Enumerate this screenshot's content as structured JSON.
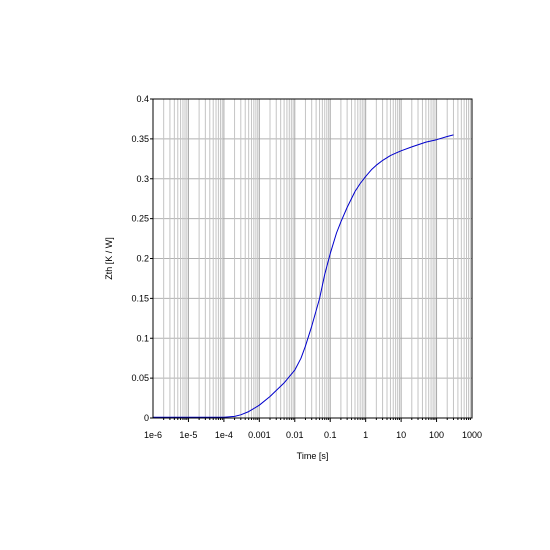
{
  "chart_data": {
    "type": "line",
    "title": "",
    "xlabel": "Time [s]",
    "ylabel": "Zth [K / W]",
    "xscale": "log",
    "xlim": [
      1e-06,
      1000
    ],
    "ylim": [
      0,
      0.4
    ],
    "grid": true,
    "x_ticks": [
      "1e-6",
      "1e-5",
      "1e-4",
      "0.001",
      "0.01",
      "0.1",
      "1",
      "10",
      "100",
      "1000"
    ],
    "y_ticks": [
      "0",
      "0.05",
      "0.1",
      "0.15",
      "0.2",
      "0.25",
      "0.3",
      "0.35",
      "0.4"
    ],
    "series": [
      {
        "color": "#0000cc",
        "x": [
          1e-06,
          1e-05,
          0.0001,
          0.0002,
          0.0003,
          0.0005,
          0.001,
          0.002,
          0.005,
          0.01,
          0.015,
          0.02,
          0.03,
          0.05,
          0.07,
          0.1,
          0.15,
          0.2,
          0.3,
          0.5,
          0.7,
          1,
          1.5,
          2,
          3,
          5,
          7,
          10,
          20,
          50,
          100,
          200,
          300
        ],
        "y": [
          0.001,
          0.001,
          0.001,
          0.002,
          0.004,
          0.008,
          0.016,
          0.027,
          0.044,
          0.06,
          0.075,
          0.09,
          0.115,
          0.15,
          0.18,
          0.206,
          0.232,
          0.246,
          0.264,
          0.284,
          0.294,
          0.303,
          0.312,
          0.317,
          0.323,
          0.329,
          0.332,
          0.335,
          0.34,
          0.346,
          0.349,
          0.353,
          0.355
        ]
      }
    ]
  }
}
